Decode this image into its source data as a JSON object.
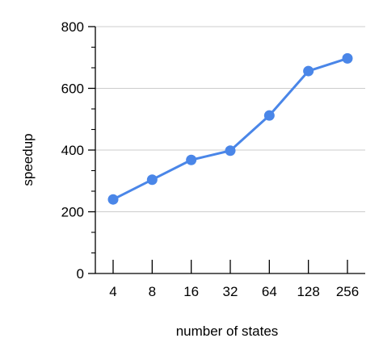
{
  "chart_data": {
    "type": "line",
    "title": "",
    "xlabel": "number of states",
    "ylabel": "speedup",
    "x_scale": "log2",
    "categories": [
      "4",
      "8",
      "16",
      "32",
      "64",
      "128",
      "256"
    ],
    "series": [
      {
        "x": [
          4,
          8,
          16,
          32,
          64,
          128,
          256
        ],
        "values": [
          240,
          304,
          368,
          398,
          512,
          656,
          697
        ]
      }
    ],
    "ylim": [
      0,
      800
    ],
    "y_ticks": [
      0,
      200,
      400,
      600,
      800
    ],
    "y_tick_labels": [
      "0",
      "200",
      "400",
      "600",
      "800"
    ],
    "grid": "horizontal",
    "legend": "none",
    "colors": {
      "series": "#4a86e8",
      "grid": "#cccccc",
      "axis": "#000000"
    }
  }
}
